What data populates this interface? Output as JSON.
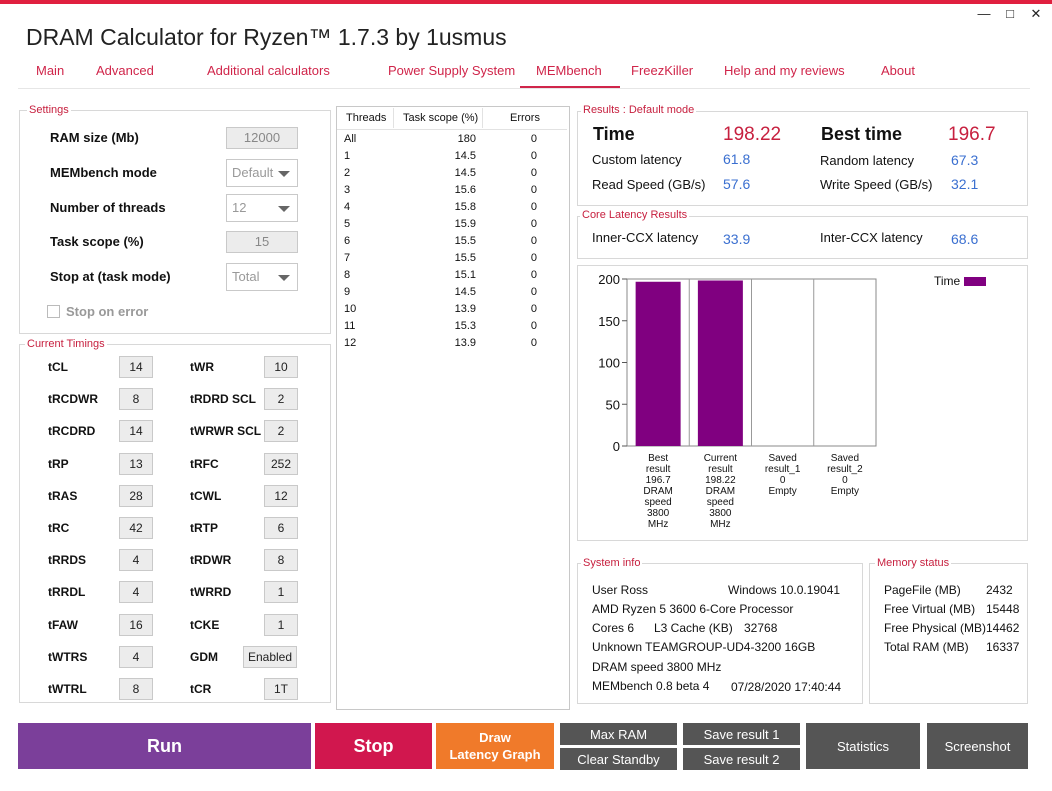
{
  "app": {
    "title": "DRAM Calculator for Ryzen™ 1.7.3 by 1usmus"
  },
  "window": {
    "minimize": "—",
    "maximize": "□",
    "close": "✕"
  },
  "tabs": [
    "Main",
    "Advanced",
    "Additional calculators",
    "Power Supply System",
    "MEMbench",
    "FreezKiller",
    "Help and my reviews",
    "About"
  ],
  "settings": {
    "title": "Settings",
    "ram_size_label": "RAM size (Mb)",
    "ram_size_value": "12000",
    "mode_label": "MEMbench mode",
    "mode_value": "Default",
    "threads_label": "Number of threads",
    "threads_value": "12",
    "scope_label": "Task scope (%)",
    "scope_value": "15",
    "stop_label": "Stop at (task mode)",
    "stop_value": "Total",
    "stop_on_error_label": "Stop on error"
  },
  "timings": {
    "title": "Current Timings",
    "left": [
      {
        "name": "tCL",
        "value": "14"
      },
      {
        "name": "tRCDWR",
        "value": "8"
      },
      {
        "name": "tRCDRD",
        "value": "14"
      },
      {
        "name": "tRP",
        "value": "13"
      },
      {
        "name": "tRAS",
        "value": "28"
      },
      {
        "name": "tRC",
        "value": "42"
      },
      {
        "name": "tRRDS",
        "value": "4"
      },
      {
        "name": "tRRDL",
        "value": "4"
      },
      {
        "name": "tFAW",
        "value": "16"
      },
      {
        "name": "tWTRS",
        "value": "4"
      },
      {
        "name": "tWTRL",
        "value": "8"
      }
    ],
    "right": [
      {
        "name": "tWR",
        "value": "10"
      },
      {
        "name": "tRDRD SCL",
        "value": "2"
      },
      {
        "name": "tWRWR SCL",
        "value": "2"
      },
      {
        "name": "tRFC",
        "value": "252"
      },
      {
        "name": "tCWL",
        "value": "12"
      },
      {
        "name": "tRTP",
        "value": "6"
      },
      {
        "name": "tRDWR",
        "value": "8"
      },
      {
        "name": "tWRRD",
        "value": "1"
      },
      {
        "name": "tCKE",
        "value": "1"
      },
      {
        "name": "GDM",
        "value": "Enabled"
      },
      {
        "name": "tCR",
        "value": "1T"
      }
    ]
  },
  "threads_table": {
    "headers": [
      "Threads",
      "Task scope (%)",
      "Errors"
    ],
    "rows": [
      [
        "All",
        "180",
        "0"
      ],
      [
        "1",
        "14.5",
        "0"
      ],
      [
        "2",
        "14.5",
        "0"
      ],
      [
        "3",
        "15.6",
        "0"
      ],
      [
        "4",
        "15.8",
        "0"
      ],
      [
        "5",
        "15.9",
        "0"
      ],
      [
        "6",
        "15.5",
        "0"
      ],
      [
        "7",
        "15.5",
        "0"
      ],
      [
        "8",
        "15.1",
        "0"
      ],
      [
        "9",
        "14.5",
        "0"
      ],
      [
        "10",
        "13.9",
        "0"
      ],
      [
        "11",
        "15.3",
        "0"
      ],
      [
        "12",
        "13.9",
        "0"
      ]
    ]
  },
  "results": {
    "title": "Results : Default mode",
    "time_label": "Time",
    "time_value": "198.22",
    "best_label": "Best time",
    "best_value": "196.7",
    "custom_label": "Custom latency",
    "custom_value": "61.8",
    "random_label": "Random latency",
    "random_value": "67.3",
    "read_label": "Read Speed (GB/s)",
    "read_value": "57.6",
    "write_label": "Write Speed (GB/s)",
    "write_value": "32.1"
  },
  "core_latency": {
    "title": "Core Latency Results",
    "inner_label": "Inner-CCX latency",
    "inner_value": "33.9",
    "inter_label": "Inter-CCX latency",
    "inter_value": "68.6"
  },
  "chart_data": {
    "type": "bar",
    "categories": [
      [
        "Best",
        "result",
        "196.7",
        "DRAM",
        "speed",
        "3800",
        "MHz"
      ],
      [
        "Current",
        "result",
        "198.22",
        "DRAM",
        "speed",
        "3800",
        "MHz"
      ],
      [
        "Saved",
        "result_1",
        "0",
        "Empty"
      ],
      [
        "Saved",
        "result_2",
        "0",
        "Empty"
      ]
    ],
    "series": [
      {
        "name": "Time",
        "values": [
          196.7,
          198.22,
          0,
          0
        ],
        "color": "#800080"
      }
    ],
    "ylim": [
      0,
      200
    ],
    "yticks": [
      "0",
      "50",
      "100",
      "150",
      "200"
    ],
    "grid": true,
    "legend": "top-right"
  },
  "system_info": {
    "title": "System info",
    "user": "User Ross",
    "os": "Windows 10.0.19041",
    "cpu": "AMD Ryzen 5 3600 6-Core Processor",
    "cores": "Cores 6",
    "l3_label": "L3 Cache (KB)",
    "l3_value": "32768",
    "memory": "Unknown TEAMGROUP-UD4-3200  16GB",
    "dram": "DRAM speed 3800 MHz",
    "version": "MEMbench 0.8 beta 4",
    "timestamp": "07/28/2020 17:40:44"
  },
  "memory_status": {
    "title": "Memory status",
    "rows": [
      [
        "PageFile (MB)",
        "2432"
      ],
      [
        "Free Virtual (MB)",
        "15448"
      ],
      [
        "Free Physical (MB)",
        "14462"
      ],
      [
        "Total RAM (MB)",
        "16337"
      ]
    ]
  },
  "buttons": {
    "run": "Run",
    "stop": "Stop",
    "draw_1": "Draw",
    "draw_2": "Latency Graph",
    "max_ram": "Max RAM",
    "clear_standby": "Clear Standby",
    "save1": "Save result 1",
    "save2": "Save result 2",
    "statistics": "Statistics",
    "screenshot": "Screenshot"
  },
  "colors": {
    "accent": "#d0254a",
    "run": "#7b3f9a",
    "stop": "#d1174e",
    "draw": "#f07a2a",
    "gray_btn": "#555555",
    "bar": "#800080",
    "value_blue": "#3a6fd0"
  }
}
